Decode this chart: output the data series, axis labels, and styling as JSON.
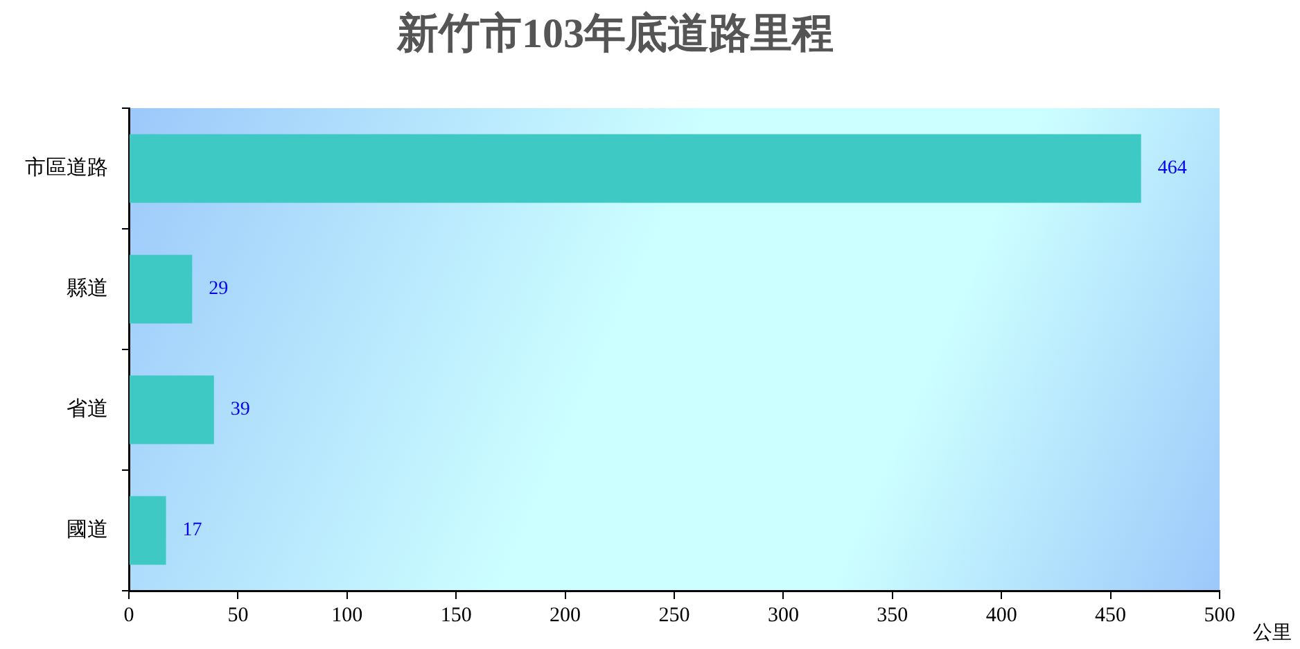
{
  "chart_data": {
    "type": "bar",
    "orientation": "horizontal",
    "title": "新竹市103年底道路里程",
    "xlabel": "公里",
    "categories": [
      "市區道路",
      "縣道",
      "省道",
      "國道"
    ],
    "values": [
      464,
      29,
      39,
      17
    ],
    "color": "#3ec9c4",
    "xlim": [
      0,
      500
    ],
    "xticks": [
      0,
      50,
      100,
      150,
      200,
      250,
      300,
      350,
      400,
      450,
      500
    ],
    "data_labels": true,
    "grid": false,
    "legend": false
  }
}
